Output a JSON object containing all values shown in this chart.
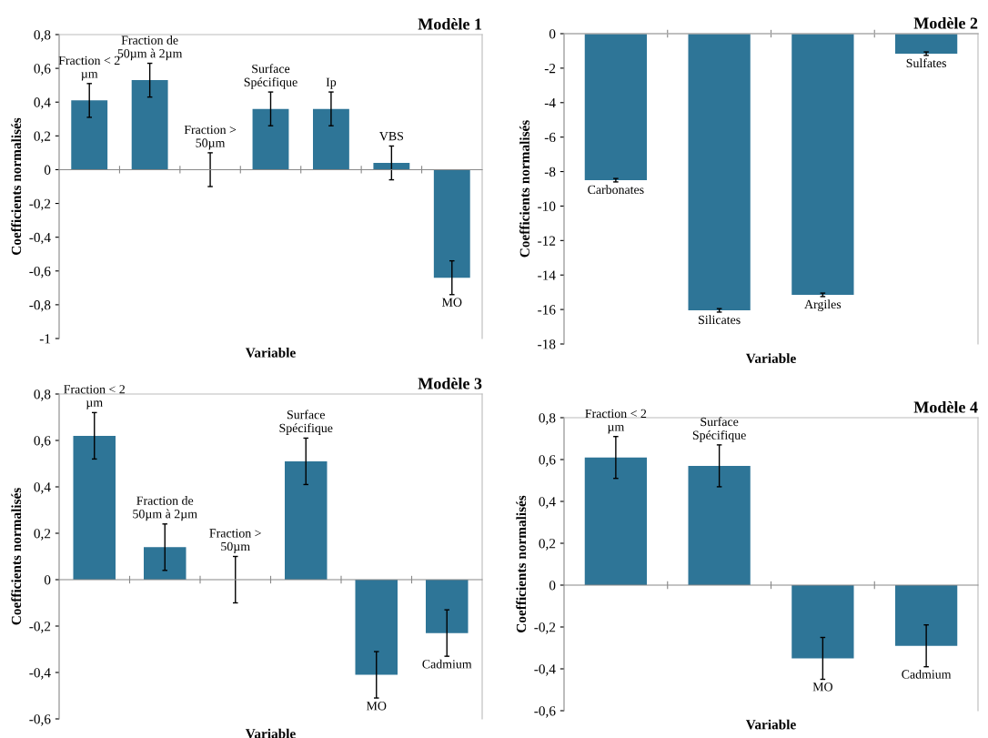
{
  "chart_data": [
    {
      "type": "bar",
      "title": "Modèle 1",
      "xlabel": "Variable",
      "ylabel": "Coefficients normalisés",
      "tick_labels": "y",
      "categories": [
        "Fraction < 2\nµm",
        "Fraction de\n50µm à 2µm",
        "Fraction >\n50µm",
        "Surface\nSpécifique",
        "Ip",
        "VBS",
        "MO"
      ],
      "values": [
        0.41,
        0.53,
        0,
        0.36,
        0.36,
        0.04,
        -0.64
      ],
      "errors": [
        0.1,
        0.1,
        0.1,
        0.1,
        0.1,
        0.1,
        0.1
      ],
      "color": "#2e7597",
      "ylim": [
        -1,
        0.8
      ],
      "yticks": [
        {
          "value": -1,
          "label": "-1"
        },
        {
          "value": -0.8,
          "label": "-0,8"
        },
        {
          "value": -0.6,
          "label": "-0,6"
        },
        {
          "value": -0.4,
          "label": "-0,4"
        },
        {
          "value": -0.2,
          "label": "-0,2"
        },
        {
          "value": 0,
          "label": "0"
        },
        {
          "value": 0.2,
          "label": "0,2"
        },
        {
          "value": 0.4,
          "label": "0,4"
        },
        {
          "value": 0.6,
          "label": "0,6"
        },
        {
          "value": 0.8,
          "label": "0,8"
        }
      ]
    },
    {
      "type": "bar",
      "title": "Modèle 2",
      "xlabel": "Variable",
      "ylabel": "Coefficients normalisés",
      "tick_labels": "y",
      "categories": [
        "Carbonates",
        "Silicates",
        "Argiles",
        "Sulfates"
      ],
      "values": [
        -8.5,
        -16.05,
        -15.15,
        -1.16
      ],
      "errors": [
        0.1,
        0.1,
        0.1,
        0.1
      ],
      "color": "#2e7597",
      "ylim": [
        -18,
        0
      ],
      "yticks": [
        -18,
        -16,
        -14,
        -12,
        -10,
        -8,
        -6,
        -4,
        -2,
        0
      ]
    },
    {
      "type": "bar",
      "title": "Modèle 3",
      "xlabel": "Variable",
      "ylabel": "Coefficients normalisés",
      "tick_labels": "y",
      "categories": [
        "Fraction < 2\nµm",
        "Fraction de\n50µm à 2µm",
        "Fraction >\n50µm",
        "Surface\nSpécifique",
        "MO",
        "Cadmium"
      ],
      "values": [
        0.62,
        0.14,
        0,
        0.51,
        -0.41,
        -0.23
      ],
      "errors": [
        0.1,
        0.1,
        0.1,
        0.1,
        0.1,
        0.1
      ],
      "color": "#2e7597",
      "ylim": [
        -0.6,
        0.8
      ],
      "yticks": [
        {
          "value": -0.6,
          "label": "-0,6"
        },
        {
          "value": -0.4,
          "label": "-0,4"
        },
        {
          "value": -0.2,
          "label": "-0,2"
        },
        {
          "value": 0,
          "label": "0"
        },
        {
          "value": 0.2,
          "label": "0,2"
        },
        {
          "value": 0.4,
          "label": "0,4"
        },
        {
          "value": 0.6,
          "label": "0,6"
        },
        {
          "value": 0.8,
          "label": "0,8"
        }
      ]
    },
    {
      "type": "bar",
      "title": "Modèle 4",
      "xlabel": "Variable",
      "ylabel": "Coefficients normalisés",
      "tick_labels": "y",
      "categories": [
        "Fraction < 2\nµm",
        "Surface\nSpécifique",
        "MO",
        "Cadmium"
      ],
      "values": [
        0.61,
        0.57,
        -0.35,
        -0.29
      ],
      "errors": [
        0.1,
        0.1,
        0.1,
        0.1
      ],
      "color": "#2e7597",
      "ylim": [
        -0.6,
        0.8
      ],
      "yticks": [
        {
          "value": -0.6,
          "label": "-0,6"
        },
        {
          "value": -0.4,
          "label": "-0,4"
        },
        {
          "value": -0.2,
          "label": "-0,2"
        },
        {
          "value": 0,
          "label": "0"
        },
        {
          "value": 0.2,
          "label": "0,2"
        },
        {
          "value": 0.4,
          "label": "0,4"
        },
        {
          "value": 0.6,
          "label": "0,6"
        },
        {
          "value": 0.8,
          "label": "0,8"
        }
      ]
    }
  ]
}
